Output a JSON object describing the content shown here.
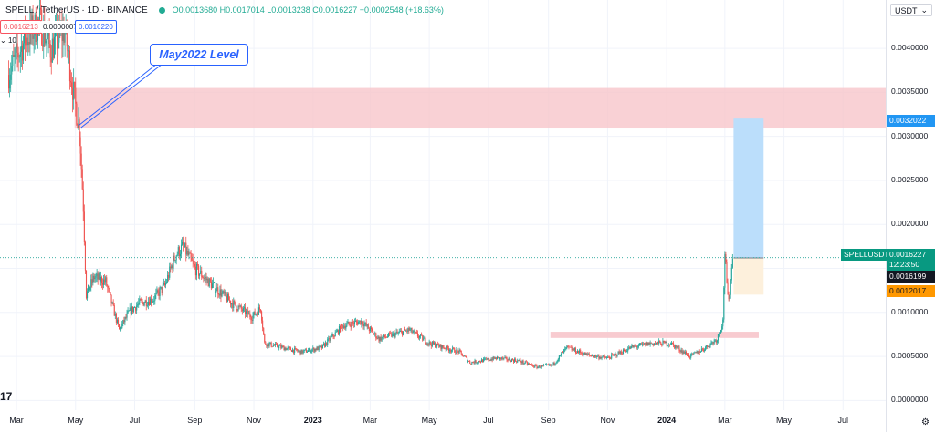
{
  "header": {
    "symbol_title": "SPELL / TetherUS · 1D · BINANCE",
    "ohlc": "O0.0013680 H0.0017014 L0.0013238 C0.0016227 +0.0002548 (+18.63%)"
  },
  "chips": {
    "sell": "0.0016213",
    "spread": "0.0000007",
    "buy": "0.0016220"
  },
  "volume_label": "10",
  "currency_button": "USDT",
  "annotation": "May2022 Level",
  "price_labels": {
    "target": "0.0032022",
    "symbol": "SPELLUSDT",
    "last": "0.0016227",
    "countdown": "12:23:50",
    "entry": "0.0016199",
    "stop": "0.0012017"
  },
  "settings_icon": "gear-icon",
  "logo_text": "17",
  "colors": {
    "up": "#26a69a",
    "down": "#ef5350",
    "zone": "#f7c5cb",
    "target_zone": "#bbdefb",
    "stop_zone": "#fdf0dc",
    "accent": "#2962ff"
  },
  "chart_data": {
    "type": "candlestick",
    "ytick_labels": [
      "0.0040000",
      "0.0035000",
      "0.0030000",
      "0.0025000",
      "0.0020000",
      "0.0015000",
      "0.0010000",
      "0.0005000",
      "0.0000000"
    ],
    "yticks": [
      0.004,
      0.0035,
      0.003,
      0.0025,
      0.002,
      0.0015,
      0.001,
      0.0005,
      0.0
    ],
    "xticks": [
      {
        "label": "Mar",
        "x": "2022-03-01"
      },
      {
        "label": "May",
        "x": "2022-05-01"
      },
      {
        "label": "Jul",
        "x": "2022-07-01"
      },
      {
        "label": "Sep",
        "x": "2022-09-01"
      },
      {
        "label": "Nov",
        "x": "2022-11-01"
      },
      {
        "label": "2023",
        "x": "2023-01-01",
        "bold": true
      },
      {
        "label": "Mar",
        "x": "2023-03-01"
      },
      {
        "label": "May",
        "x": "2023-05-01"
      },
      {
        "label": "Jul",
        "x": "2023-07-01"
      },
      {
        "label": "Sep",
        "x": "2023-09-01"
      },
      {
        "label": "Nov",
        "x": "2023-11-01"
      },
      {
        "label": "2024",
        "x": "2024-01-01",
        "bold": true
      },
      {
        "label": "Mar",
        "x": "2024-03-01"
      },
      {
        "label": "May",
        "x": "2024-05-01"
      },
      {
        "label": "Jul",
        "x": "2024-07-01"
      }
    ],
    "x_range": [
      "2022-02-12",
      "2024-08-14"
    ],
    "y_range": [
      -0.00011,
      0.00455
    ],
    "price_path": [
      [
        "2022-02-20",
        0.0037
      ],
      [
        "2022-03-10",
        0.0041
      ],
      [
        "2022-03-25",
        0.0043
      ],
      [
        "2022-04-05",
        0.004
      ],
      [
        "2022-04-20",
        0.0042
      ],
      [
        "2022-04-30",
        0.0034
      ],
      [
        "2022-05-05",
        0.0031
      ],
      [
        "2022-05-09",
        0.0022
      ],
      [
        "2022-05-12",
        0.0012
      ],
      [
        "2022-05-20",
        0.0014
      ],
      [
        "2022-06-01",
        0.00135
      ],
      [
        "2022-06-15",
        0.0008
      ],
      [
        "2022-06-25",
        0.001
      ],
      [
        "2022-07-05",
        0.0011
      ],
      [
        "2022-07-20",
        0.00115
      ],
      [
        "2022-08-01",
        0.0013
      ],
      [
        "2022-08-12",
        0.00165
      ],
      [
        "2022-08-20",
        0.00175
      ],
      [
        "2022-09-01",
        0.0015
      ],
      [
        "2022-09-20",
        0.0013
      ],
      [
        "2022-10-10",
        0.0011
      ],
      [
        "2022-10-30",
        0.00095
      ],
      [
        "2022-11-08",
        0.00105
      ],
      [
        "2022-11-12",
        0.00065
      ],
      [
        "2022-12-01",
        0.0006
      ],
      [
        "2022-12-20",
        0.00055
      ],
      [
        "2023-01-10",
        0.0006
      ],
      [
        "2023-02-01",
        0.00085
      ],
      [
        "2023-02-20",
        0.0009
      ],
      [
        "2023-03-10",
        0.0007
      ],
      [
        "2023-04-10",
        0.0008
      ],
      [
        "2023-05-01",
        0.00065
      ],
      [
        "2023-06-01",
        0.00055
      ],
      [
        "2023-06-12",
        0.00043
      ],
      [
        "2023-07-10",
        0.00048
      ],
      [
        "2023-08-01",
        0.00045
      ],
      [
        "2023-08-20",
        0.00038
      ],
      [
        "2023-09-05",
        0.0004
      ],
      [
        "2023-09-20",
        0.0006
      ],
      [
        "2023-10-10",
        0.00052
      ],
      [
        "2023-11-01",
        0.00048
      ],
      [
        "2023-11-25",
        0.0006
      ],
      [
        "2023-12-15",
        0.00065
      ],
      [
        "2024-01-05",
        0.00065
      ],
      [
        "2024-01-25",
        0.0005
      ],
      [
        "2024-02-10",
        0.0006
      ],
      [
        "2024-02-22",
        0.0007
      ],
      [
        "2024-02-28",
        0.0009
      ],
      [
        "2024-03-01",
        0.0017
      ],
      [
        "2024-03-03",
        0.0013
      ],
      [
        "2024-03-05",
        0.0011
      ],
      [
        "2024-03-07",
        0.0014
      ],
      [
        "2024-03-09",
        0.0016
      ]
    ],
    "resistance_zone": {
      "from": "2022-04-30",
      "to": "2024-08-14",
      "low": 0.0031,
      "high": 0.00355
    },
    "support_zone": {
      "from": "2023-09-03",
      "to": "2024-04-05",
      "low": 0.00071,
      "high": 0.00078
    },
    "position": {
      "from": "2024-03-10",
      "to": "2024-04-10",
      "entry": 0.0016199,
      "target": 0.0032022,
      "stop": 0.0012017
    },
    "last_price": 0.0016227,
    "annotation_anchor": {
      "x": "2022-05-01",
      "y": 0.0031
    }
  }
}
